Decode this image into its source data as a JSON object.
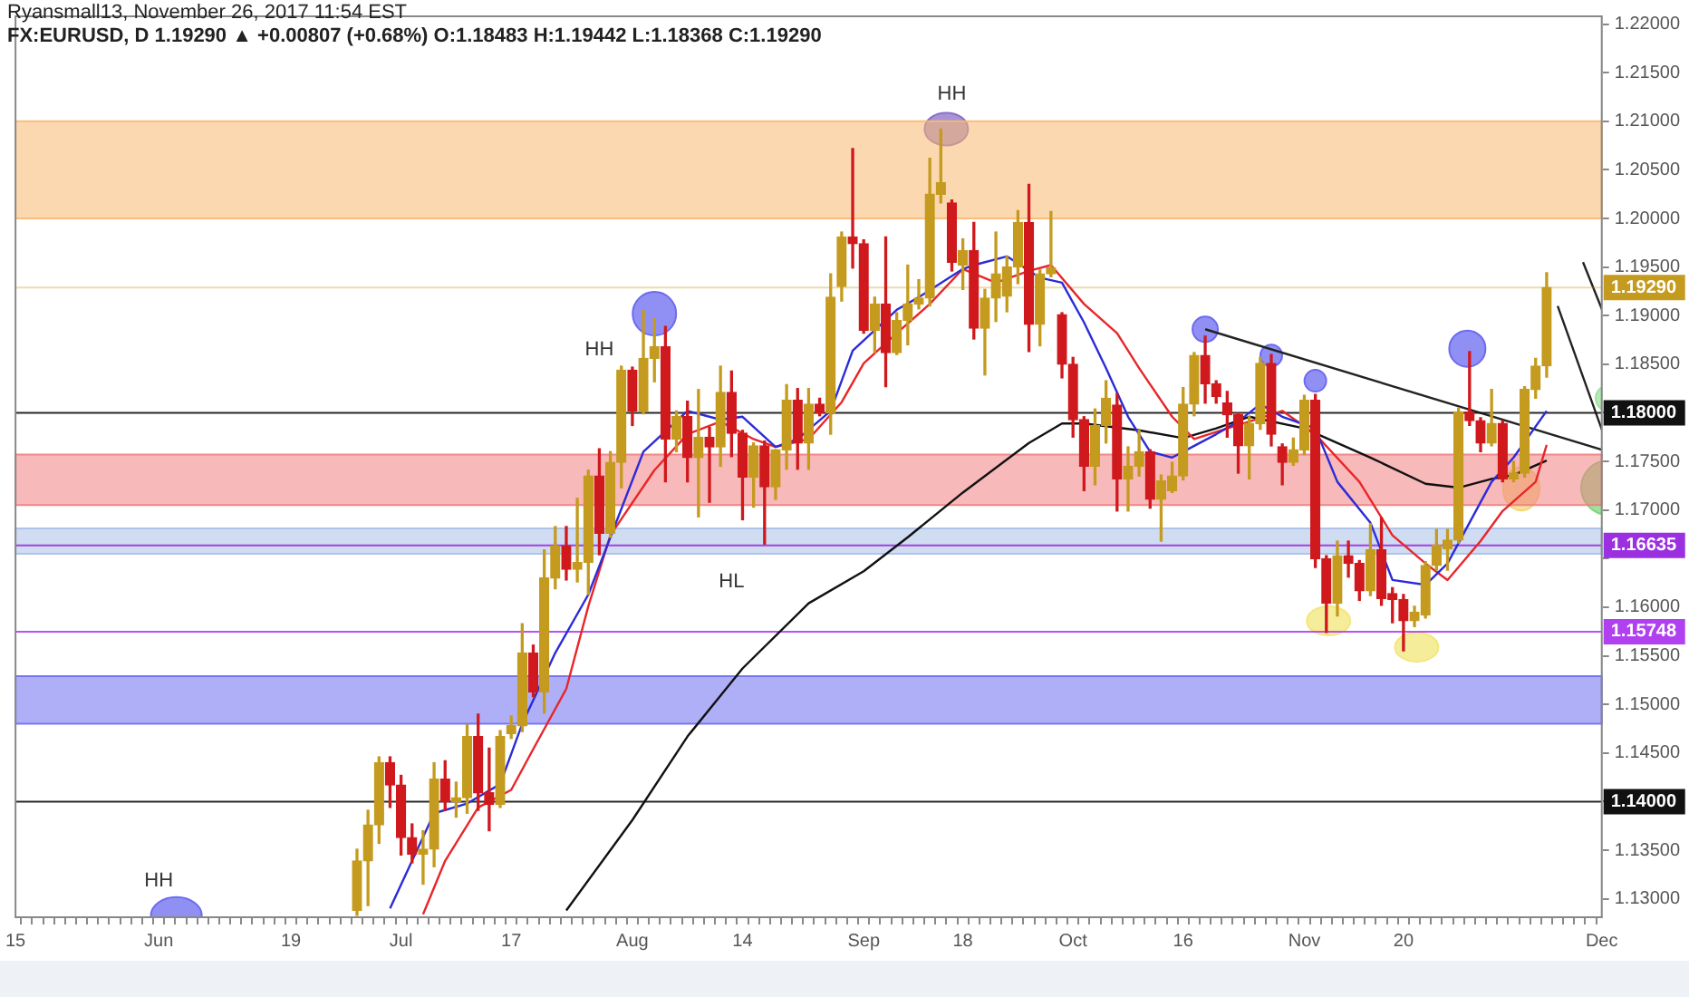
{
  "chart_data": {
    "type": "candlestick",
    "subtitle": "Ryansmall13, November 26, 2017 11:54 EST",
    "title": "FX:EURUSD, D 1.19290 ▲ +0.00807 (+0.68%) O:1.18483 H:1.19442 L:1.18368 C:1.19290",
    "categories": [
      "15",
      null,
      null,
      null,
      null,
      null,
      null,
      null,
      null,
      null,
      null,
      null,
      null,
      "Jun",
      null,
      null,
      null,
      null,
      null,
      null,
      null,
      null,
      null,
      null,
      null,
      "19",
      null,
      null,
      null,
      null,
      null,
      null,
      null,
      null,
      null,
      "Jul",
      null,
      null,
      null,
      null,
      null,
      null,
      null,
      null,
      null,
      "17",
      null,
      null,
      null,
      null,
      null,
      null,
      null,
      null,
      null,
      null,
      "Aug",
      null,
      null,
      null,
      null,
      null,
      null,
      null,
      null,
      null,
      "14",
      null,
      null,
      null,
      null,
      null,
      null,
      null,
      null,
      null,
      null,
      "Sep",
      null,
      null,
      null,
      null,
      null,
      null,
      null,
      null,
      "18",
      null,
      null,
      null,
      null,
      null,
      null,
      null,
      null,
      null,
      "Oct",
      null,
      null,
      null,
      null,
      null,
      null,
      null,
      null,
      null,
      "16",
      null,
      null,
      null,
      null,
      null,
      null,
      null,
      null,
      null,
      null,
      "Nov",
      null,
      null,
      null,
      null,
      null,
      null,
      null,
      null,
      "20",
      null,
      null,
      null,
      null,
      null,
      null,
      null,
      null,
      null,
      null,
      null,
      null,
      null,
      null,
      null,
      null,
      null,
      "Dec"
    ],
    "ohlc": [
      null,
      null,
      null,
      null,
      null,
      null,
      null,
      null,
      null,
      null,
      null,
      null,
      null,
      null,
      null,
      null,
      null,
      null,
      null,
      null,
      null,
      null,
      null,
      null,
      null,
      null,
      null,
      null,
      null,
      null,
      null,
      [
        1.1288,
        1.1351,
        1.1283,
        1.1339
      ],
      [
        1.1339,
        1.1391,
        1.1293,
        1.1376
      ],
      [
        1.1376,
        1.1446,
        1.1357,
        1.144
      ],
      [
        1.144,
        1.1446,
        1.1394,
        1.1417
      ],
      [
        1.1417,
        1.1427,
        1.1345,
        1.1363
      ],
      [
        1.1363,
        1.1377,
        1.1337,
        1.1346
      ],
      [
        1.1346,
        1.137,
        1.1315,
        1.1351
      ],
      [
        1.1351,
        1.144,
        1.1333,
        1.1423
      ],
      [
        1.1423,
        1.1442,
        1.1391,
        1.14
      ],
      [
        1.14,
        1.142,
        1.1384,
        1.1404
      ],
      [
        1.1404,
        1.1479,
        1.1388,
        1.1467
      ],
      [
        1.1467,
        1.149,
        1.1391,
        1.1409
      ],
      [
        1.1409,
        1.1455,
        1.137,
        1.1397
      ],
      [
        1.1397,
        1.1473,
        1.1394,
        1.1467
      ],
      [
        1.147,
        1.1488,
        1.1465,
        1.1478
      ],
      [
        1.1478,
        1.1583,
        1.1472,
        1.1553
      ],
      [
        1.1553,
        1.1561,
        1.1508,
        1.1513
      ],
      [
        1.1513,
        1.1659,
        1.1491,
        1.163
      ],
      [
        1.163,
        1.1683,
        1.1619,
        1.1663
      ],
      [
        1.1663,
        1.1683,
        1.1628,
        1.1639
      ],
      [
        1.1639,
        1.1712,
        1.1626,
        1.1646
      ],
      [
        1.1646,
        1.1741,
        1.1613,
        1.1735
      ],
      [
        1.1735,
        1.1763,
        1.1654,
        1.1676
      ],
      [
        1.1676,
        1.176,
        1.1672,
        1.1749
      ],
      [
        1.1749,
        1.1848,
        1.1723,
        1.1844
      ],
      [
        1.1844,
        1.1847,
        1.1787,
        1.1802
      ],
      [
        1.1802,
        1.1906,
        1.1799,
        1.1856
      ],
      [
        1.1856,
        1.1897,
        1.1832,
        1.1868
      ],
      [
        1.1868,
        1.1889,
        1.1729,
        1.1773
      ],
      [
        1.1773,
        1.1802,
        1.176,
        1.1796
      ],
      [
        1.1796,
        1.1812,
        1.1729,
        1.1754
      ],
      [
        1.1754,
        1.1824,
        1.1693,
        1.1775
      ],
      [
        1.1775,
        1.1785,
        1.1708,
        1.1765
      ],
      [
        1.1765,
        1.1848,
        1.1745,
        1.1821
      ],
      [
        1.1821,
        1.1843,
        1.1755,
        1.1779
      ],
      [
        1.1779,
        1.1782,
        1.169,
        1.1734
      ],
      [
        1.1734,
        1.1769,
        1.1703,
        1.1766
      ],
      [
        1.1766,
        1.1771,
        1.1665,
        1.1724
      ],
      [
        1.1724,
        1.1762,
        1.1711,
        1.1762
      ],
      [
        1.1762,
        1.1829,
        1.1742,
        1.1813
      ],
      [
        1.1813,
        1.1825,
        1.1742,
        1.1769
      ],
      [
        1.1769,
        1.1825,
        1.1742,
        1.1809
      ],
      [
        1.1809,
        1.1815,
        1.1797,
        1.18
      ],
      [
        1.18,
        1.1943,
        1.1778,
        1.1919
      ],
      [
        1.193,
        1.1986,
        1.1915,
        1.1981
      ],
      [
        1.1981,
        1.2072,
        1.1949,
        1.1974
      ],
      [
        1.1974,
        1.1978,
        1.1882,
        1.1885
      ],
      [
        1.1885,
        1.1919,
        1.1862,
        1.1912
      ],
      [
        1.1912,
        1.1981,
        1.1827,
        1.1862
      ],
      [
        1.1862,
        1.1903,
        1.186,
        1.1895
      ],
      [
        1.1895,
        1.1952,
        1.187,
        1.1912
      ],
      [
        1.1912,
        1.1937,
        1.1907,
        1.1918
      ],
      [
        1.1918,
        1.2062,
        1.191,
        1.2025
      ],
      [
        1.2025,
        1.2092,
        1.2016,
        1.2037
      ],
      [
        1.2016,
        1.2019,
        1.1946,
        1.1955
      ],
      [
        1.1952,
        1.1979,
        1.1927,
        1.1967
      ],
      [
        1.1967,
        1.1996,
        1.1876,
        1.1887
      ],
      [
        1.1887,
        1.1927,
        1.1839,
        1.1918
      ],
      [
        1.1918,
        1.1986,
        1.1894,
        1.1943
      ],
      [
        1.192,
        1.1961,
        1.1904,
        1.195
      ],
      [
        1.195,
        1.2008,
        1.1933,
        1.1996
      ],
      [
        1.1996,
        1.2035,
        1.1863,
        1.1891
      ],
      [
        1.1891,
        1.1947,
        1.1869,
        1.1943
      ],
      [
        1.1943,
        1.2007,
        1.194,
        1.1949
      ],
      [
        1.1901,
        1.1903,
        1.1836,
        1.185
      ],
      [
        1.185,
        1.1857,
        1.1775,
        1.1793
      ],
      [
        1.1793,
        1.1796,
        1.172,
        1.1745
      ],
      [
        1.1745,
        1.1804,
        1.1726,
        1.1787
      ],
      [
        1.1787,
        1.1833,
        1.1769,
        1.1815
      ],
      [
        1.1808,
        1.182,
        1.1699,
        1.1732
      ],
      [
        1.1732,
        1.1765,
        1.1699,
        1.1745
      ],
      [
        1.1745,
        1.1782,
        1.1735,
        1.176
      ],
      [
        1.176,
        1.1762,
        1.1702,
        1.1711
      ],
      [
        1.1711,
        1.1736,
        1.1668,
        1.173
      ],
      [
        1.172,
        1.1749,
        1.1718,
        1.1735
      ],
      [
        1.1735,
        1.1826,
        1.1731,
        1.1809
      ],
      [
        1.1809,
        1.1862,
        1.1797,
        1.1859
      ],
      [
        1.1859,
        1.1879,
        1.181,
        1.183
      ],
      [
        1.183,
        1.1833,
        1.181,
        1.1817
      ],
      [
        1.181,
        1.1822,
        1.1775,
        1.1798
      ],
      [
        1.1798,
        1.18,
        1.1738,
        1.1766
      ],
      [
        1.1766,
        1.1796,
        1.1732,
        1.1789
      ],
      [
        1.1789,
        1.1857,
        1.1783,
        1.1851
      ],
      [
        1.1851,
        1.186,
        1.1766,
        1.1778
      ],
      [
        1.1765,
        1.1768,
        1.1726,
        1.1749
      ],
      [
        1.1749,
        1.1774,
        1.1746,
        1.1762
      ],
      [
        1.1762,
        1.1818,
        1.1757,
        1.1813
      ],
      [
        1.1813,
        1.1819,
        1.1641,
        1.165
      ],
      [
        1.165,
        1.1653,
        1.1574,
        1.1604
      ],
      [
        1.1604,
        1.1668,
        1.1591,
        1.1653
      ],
      [
        1.1653,
        1.1668,
        1.1631,
        1.1645
      ],
      [
        1.1645,
        1.1648,
        1.1607,
        1.1617
      ],
      [
        1.1617,
        1.1686,
        1.1612,
        1.1659
      ],
      [
        1.1659,
        1.1692,
        1.1602,
        1.1609
      ],
      [
        1.1614,
        1.162,
        1.1584,
        1.1608
      ],
      [
        1.1608,
        1.1613,
        1.1555,
        1.1586
      ],
      [
        1.1586,
        1.1601,
        1.158,
        1.1595
      ],
      [
        1.1592,
        1.1647,
        1.1589,
        1.1643
      ],
      [
        1.1643,
        1.168,
        1.1638,
        1.1664
      ],
      [
        1.166,
        1.168,
        1.1638,
        1.1669
      ],
      [
        1.1669,
        1.1805,
        1.1666,
        1.1801
      ],
      [
        1.1801,
        1.1863,
        1.1787,
        1.1792
      ],
      [
        1.1792,
        1.1795,
        1.176,
        1.1769
      ],
      [
        1.1769,
        1.1824,
        1.1766,
        1.1789
      ],
      [
        1.1789,
        1.1792,
        1.1729,
        1.1732
      ],
      [
        1.1732,
        1.175,
        1.1729,
        1.1738
      ],
      [
        1.1738,
        1.1827,
        1.1734,
        1.1824
      ],
      [
        1.1824,
        1.1856,
        1.1815,
        1.1848
      ],
      [
        1.18483,
        1.19442,
        1.18368,
        1.1929
      ],
      null,
      null,
      null,
      null,
      null
    ],
    "colors": [
      null,
      null,
      null,
      null,
      null,
      null,
      null,
      null,
      null,
      null,
      null,
      null,
      null,
      null,
      null,
      null,
      null,
      null,
      null,
      null,
      null,
      null,
      null,
      null,
      null,
      null,
      null,
      null,
      null,
      null,
      null,
      "#c49b1f",
      "#c49b1f",
      "#c49b1f",
      "#d0191d",
      "#d0191d",
      "#d0191d",
      "#c49b1f",
      "#c49b1f",
      "#d0191d",
      "#c49b1f",
      "#c49b1f",
      "#d0191d",
      "#d0191d",
      "#c49b1f",
      "#c49b1f",
      "#c49b1f",
      "#d0191d",
      "#c49b1f",
      "#c49b1f",
      "#d0191d",
      "#c49b1f",
      "#c49b1f",
      "#d0191d",
      "#c49b1f",
      "#c49b1f",
      "#d0191d",
      "#c49b1f",
      "#c49b1f",
      "#d0191d",
      "#c49b1f",
      "#d0191d",
      "#c49b1f",
      "#d0191d",
      "#c49b1f",
      "#d0191d",
      "#d0191d",
      "#c49b1f",
      "#d0191d",
      "#c49b1f",
      "#c49b1f",
      "#d0191d",
      "#c49b1f",
      "#d0191d",
      "#c49b1f",
      "#c49b1f",
      "#d0191d",
      "#d0191d",
      "#c49b1f",
      "#d0191d",
      "#c49b1f",
      "#c49b1f",
      "#c49b1f",
      "#c49b1f",
      "#c49b1f",
      "#d0191d",
      "#c49b1f",
      "#d0191d",
      "#c49b1f",
      "#c49b1f",
      "#c49b1f",
      "#c49b1f",
      "#d0191d",
      "#c49b1f",
      "#c49b1f",
      "#d0191d",
      "#d0191d",
      "#d0191d",
      "#c49b1f",
      "#c49b1f",
      "#d0191d",
      "#c49b1f",
      "#c49b1f",
      "#d0191d",
      "#c49b1f",
      "#c49b1f",
      "#c49b1f",
      "#c49b1f",
      "#d0191d",
      "#d0191d",
      "#d0191d",
      "#d0191d",
      "#c49b1f",
      "#c49b1f",
      "#d0191d",
      "#d0191d",
      "#c49b1f",
      "#c49b1f",
      "#d0191d",
      "#d0191d",
      "#c49b1f",
      "#d0191d",
      "#d0191d",
      "#c49b1f",
      "#d0191d",
      "#d0191d",
      "#d0191d",
      "#c49b1f",
      "#c49b1f",
      "#c49b1f",
      "#c49b1f",
      "#c49b1f",
      "#d0191d",
      "#d0191d",
      "#c49b1f",
      "#d0191d",
      "#c49b1f",
      "#c49b1f",
      "#c49b1f",
      "#c49b1f",
      null,
      null,
      null,
      null,
      null
    ],
    "series": [
      {
        "type": "line",
        "color": "#2b2bd9",
        "values": [
          null,
          null,
          null,
          null,
          null,
          null,
          null,
          null,
          null,
          null,
          null,
          null,
          null,
          null,
          null,
          null,
          null,
          null,
          null,
          null,
          null,
          null,
          null,
          null,
          null,
          null,
          null,
          null,
          null,
          null,
          null,
          null,
          null,
          null,
          1.129,
          null,
          null,
          null,
          1.1388,
          null,
          null,
          1.1398,
          null,
          null,
          1.1418,
          null,
          1.148,
          null,
          null,
          1.1553,
          null,
          null,
          1.1613,
          null,
          null,
          null,
          null,
          1.176,
          null,
          null,
          null,
          1.1802,
          null,
          null,
          1.1793,
          null,
          1.1796,
          null,
          null,
          1.1765,
          null,
          1.1773,
          null,
          null,
          1.1802,
          null,
          1.1864,
          null,
          null,
          null,
          1.1906,
          null,
          1.1919,
          null,
          null,
          null,
          1.1948,
          1.1952,
          null,
          null,
          1.1961,
          null,
          null,
          1.1939,
          null,
          1.1934,
          null,
          1.1893,
          null,
          1.1846,
          null,
          1.1796,
          null,
          1.176,
          null,
          1.1754,
          1.176,
          null,
          null,
          1.1778,
          null,
          1.1791,
          null,
          1.1809,
          null,
          1.1796,
          null,
          null,
          1.1784,
          null,
          1.1729,
          null,
          null,
          1.1687,
          null,
          1.1628,
          null,
          null,
          1.1623,
          null,
          1.1645,
          null,
          1.1687,
          null,
          1.1729,
          null,
          1.1754,
          null,
          null,
          1.1802,
          null,
          null,
          null,
          null,
          null
        ]
      },
      {
        "type": "line",
        "color": "#e8262a",
        "values": [
          null,
          null,
          null,
          null,
          null,
          null,
          null,
          null,
          null,
          null,
          null,
          null,
          null,
          null,
          null,
          null,
          null,
          null,
          null,
          null,
          null,
          null,
          null,
          null,
          null,
          null,
          null,
          null,
          null,
          null,
          null,
          null,
          null,
          null,
          null,
          null,
          null,
          1.1284,
          null,
          1.1339,
          null,
          null,
          1.1394,
          null,
          null,
          1.1412,
          null,
          1.1454,
          null,
          null,
          1.1516,
          null,
          1.1601,
          null,
          1.1674,
          null,
          null,
          null,
          1.1741,
          null,
          null,
          1.1778,
          null,
          null,
          1.1791,
          null,
          null,
          1.1773,
          null,
          1.1765,
          null,
          null,
          1.1773,
          null,
          null,
          1.1811,
          null,
          1.1851,
          null,
          null,
          1.1882,
          null,
          null,
          1.1912,
          null,
          null,
          1.1948,
          null,
          null,
          1.1934,
          null,
          null,
          1.1946,
          null,
          1.1952,
          null,
          null,
          1.1912,
          null,
          null,
          1.1882,
          null,
          1.1846,
          null,
          null,
          1.1796,
          null,
          1.1773,
          null,
          null,
          1.1784,
          null,
          1.1791,
          null,
          null,
          1.1802,
          null,
          null,
          1.1778,
          null,
          null,
          null,
          1.1729,
          null,
          null,
          1.1674,
          null,
          null,
          1.1645,
          null,
          1.1628,
          null,
          null,
          1.1668,
          null,
          1.1699,
          null,
          null,
          1.1729,
          1.1767,
          null,
          null,
          null,
          null,
          null
        ]
      },
      {
        "type": "line",
        "color": "#111111",
        "values": [
          null,
          null,
          null,
          null,
          null,
          null,
          null,
          null,
          null,
          null,
          null,
          null,
          null,
          null,
          null,
          null,
          null,
          null,
          null,
          null,
          null,
          null,
          null,
          null,
          null,
          null,
          null,
          null,
          null,
          null,
          null,
          null,
          null,
          null,
          null,
          null,
          null,
          null,
          null,
          null,
          null,
          null,
          null,
          null,
          null,
          null,
          null,
          null,
          null,
          null,
          1.1288,
          null,
          null,
          null,
          null,
          null,
          1.1381,
          null,
          null,
          null,
          null,
          1.1467,
          null,
          null,
          null,
          null,
          1.1537,
          null,
          null,
          null,
          null,
          null,
          1.1604,
          null,
          null,
          null,
          null,
          1.1637,
          null,
          null,
          null,
          1.1672,
          null,
          null,
          null,
          null,
          1.1718,
          null,
          null,
          null,
          null,
          null,
          1.1769,
          null,
          null,
          1.1789,
          null,
          1.1789,
          null,
          null,
          null,
          null,
          1.1782,
          null,
          null,
          null,
          1.1774,
          null,
          null,
          1.1784,
          null,
          null,
          1.1796,
          null,
          null,
          null,
          null,
          1.1784,
          null,
          null,
          null,
          null,
          null,
          1.1754,
          null,
          null,
          null,
          null,
          1.1727,
          null,
          null,
          1.1723,
          null,
          null,
          1.1732,
          null,
          1.1736,
          null,
          null,
          1.1751,
          null,
          null,
          null,
          null,
          null
        ]
      }
    ],
    "ylim": [
      1.1281,
      1.2208
    ],
    "yticks": [
      {
        "value": 1.13,
        "label": "1.13000"
      },
      {
        "value": 1.135,
        "label": "1.13500"
      },
      {
        "value": 1.14,
        "label": null
      },
      {
        "value": 1.145,
        "label": "1.14500"
      },
      {
        "value": 1.15,
        "label": "1.15000"
      },
      {
        "value": 1.155,
        "label": "1.15500"
      },
      {
        "value": 1.16,
        "label": "1.16000"
      },
      {
        "value": 1.165,
        "label": null
      },
      {
        "value": 1.17,
        "label": "1.17000"
      },
      {
        "value": 1.175,
        "label": "1.17500"
      },
      {
        "value": 1.18,
        "label": null
      },
      {
        "value": 1.185,
        "label": "1.18500"
      },
      {
        "value": 1.19,
        "label": "1.19000"
      },
      {
        "value": 1.195,
        "label": "1.19500"
      },
      {
        "value": 1.2,
        "label": "1.20000"
      },
      {
        "value": 1.205,
        "label": "1.20500"
      },
      {
        "value": 1.21,
        "label": "1.21000"
      },
      {
        "value": 1.215,
        "label": "1.21500"
      },
      {
        "value": 1.22,
        "label": "1.22000"
      }
    ],
    "bands": [
      {
        "axis": "y",
        "from": 1.2,
        "to": 1.21,
        "color": "#f9b870"
      },
      {
        "axis": "y",
        "from": 1.1705,
        "to": 1.1757,
        "color": "#f08080"
      },
      {
        "axis": "y",
        "from": 1.1655,
        "to": 1.1681,
        "color": "#a9bfe8"
      },
      {
        "axis": "y",
        "from": 1.148,
        "to": 1.1529,
        "color": "#6e6ef0"
      }
    ],
    "ref_lines": [
      {
        "axis": "y",
        "value": 1.1929,
        "label": "1.19290",
        "color": "#c49b1f"
      },
      {
        "axis": "y",
        "value": 1.18,
        "label": "1.18000",
        "color": "#111111"
      },
      {
        "axis": "y",
        "value": 1.16635,
        "label": "1.16635",
        "color": "#9b30e0"
      },
      {
        "axis": "y",
        "value": 1.15748,
        "label": "1.15748",
        "color": "#b040f0"
      },
      {
        "axis": "y",
        "value": 1.14,
        "label": "1.14000",
        "color": "#111111"
      }
    ],
    "annotations": [
      "HH",
      "HH",
      "HL",
      "HH"
    ]
  }
}
